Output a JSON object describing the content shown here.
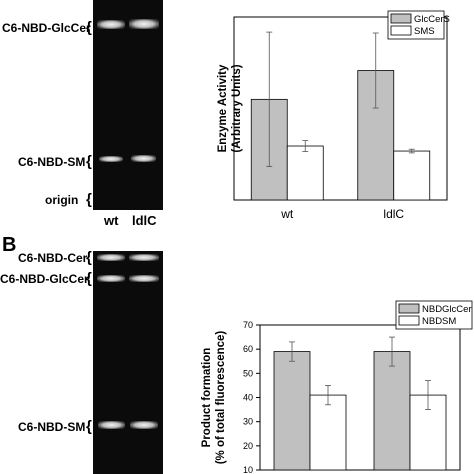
{
  "panelA": {
    "gel_labels": {
      "glccer": "C6-NBD-GlcCer",
      "sm": "C6-NBD-SM",
      "origin": "origin"
    },
    "lanes": [
      "wt",
      "ldlC"
    ]
  },
  "panelB": {
    "letter": "B",
    "gel_labels": {
      "cer": "C6-NBD-Cer",
      "glccer": "C6-NBD-GlcCer",
      "sm": "C6-NBD-SM"
    }
  },
  "brace": "{",
  "chart_data": [
    {
      "type": "bar",
      "categories": [
        "wt",
        "ldlC"
      ],
      "series": [
        {
          "name": "GlcCerS",
          "values": [
            22,
            28.3
          ],
          "errors": [
            14.7,
            8.2
          ],
          "color": "#c0c0c0"
        },
        {
          "name": "SMS",
          "values": [
            11.8,
            10.7
          ],
          "errors": [
            1.2,
            0.4
          ],
          "color": "#ffffff"
        }
      ],
      "ylabel_line1": "Enzyme Activity",
      "ylabel_line2": "(Arbitrary Units)",
      "ylim": [
        0,
        40
      ],
      "legend": "top-right"
    },
    {
      "type": "bar",
      "categories": [
        "",
        ""
      ],
      "series": [
        {
          "name": "NBDGlcCer",
          "values": [
            59,
            59
          ],
          "errors": [
            4,
            6
          ],
          "color": "#c0c0c0"
        },
        {
          "name": "NBDSM",
          "values": [
            41,
            41
          ],
          "errors": [
            4,
            6
          ],
          "color": "#ffffff"
        }
      ],
      "ylabel_line1": "Product formation",
      "ylabel_line2": "(% of total fluorescence)",
      "ylim": [
        10,
        70
      ],
      "yticks": [
        "10",
        "20",
        "30",
        "40",
        "50",
        "60",
        "70"
      ],
      "legend": "top-right"
    }
  ]
}
